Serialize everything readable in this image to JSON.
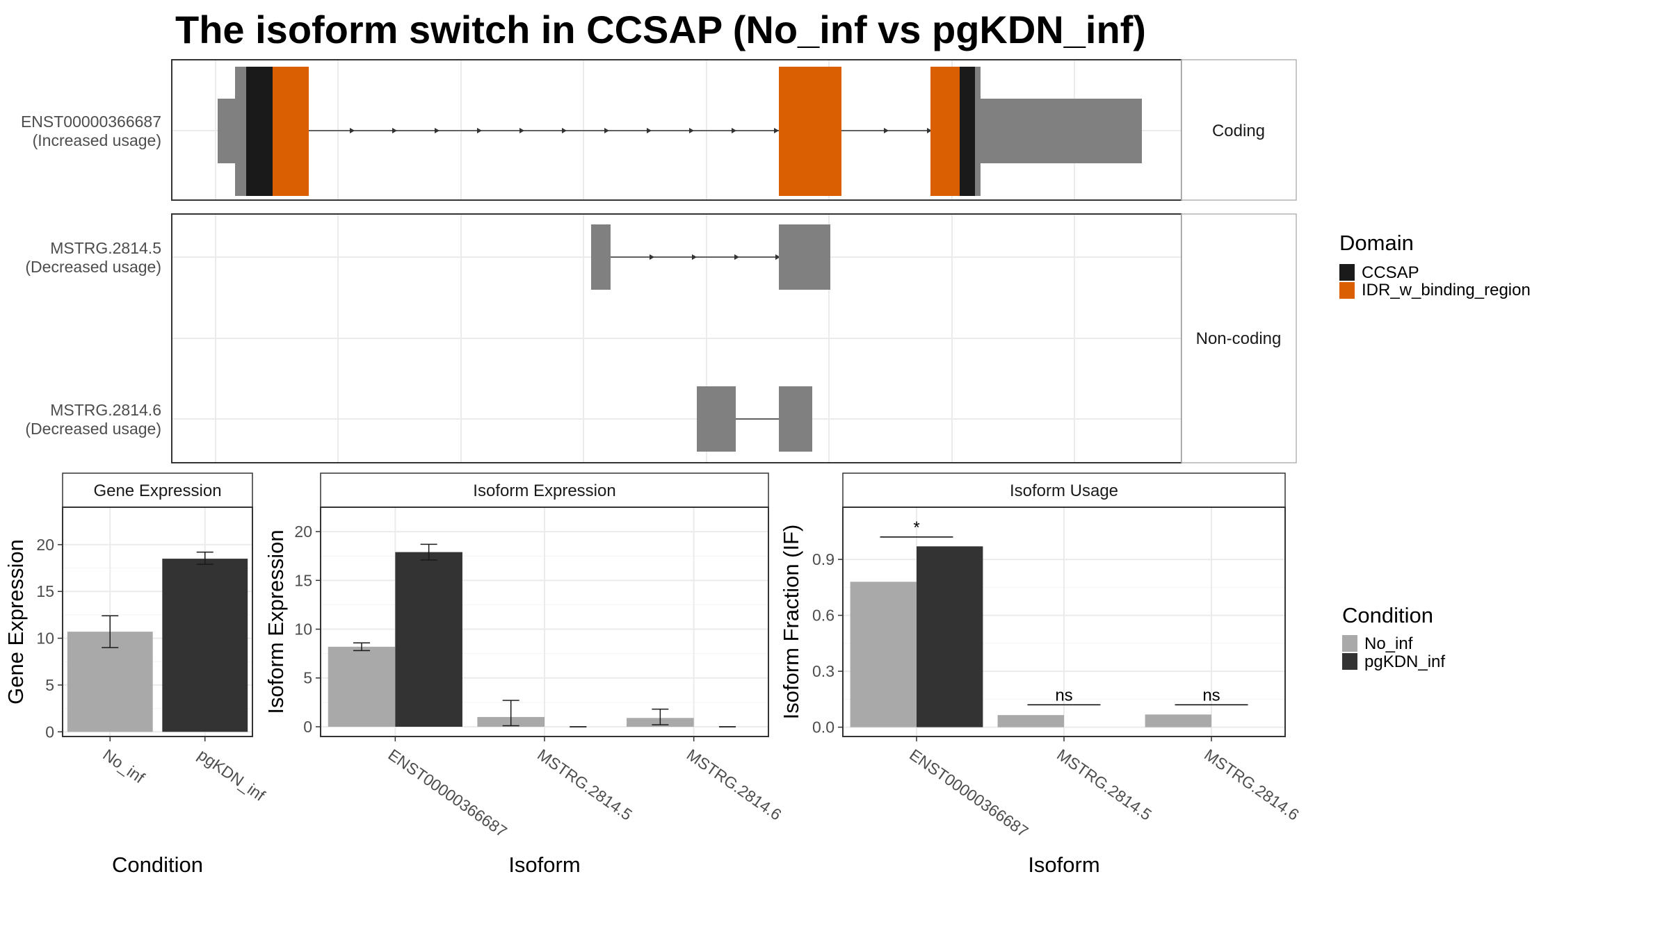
{
  "title": "The isoform switch in CCSAP (No_inf vs pgKDN_inf)",
  "colors": {
    "exon": "#808080",
    "CCSAP": "#1a1a1a",
    "IDR_w_binding_region": "#d95f02",
    "No_inf": "#a9a9a9",
    "pgKDN_inf": "#333333",
    "grid": "#ebebeb",
    "panel_border": "#333333"
  },
  "structure": {
    "groups": [
      {
        "label": "Coding",
        "isoforms": [
          {
            "name": "ENST00000366687",
            "usage": "(Increased usage)"
          }
        ]
      },
      {
        "label": "Non-coding",
        "isoforms": [
          {
            "name": "MSTRG.2814.5",
            "usage": "(Decreased usage)"
          },
          {
            "name": "MSTRG.2814.6",
            "usage": "(Decreased usage)"
          }
        ]
      }
    ]
  },
  "domain_legend": {
    "title": "Domain",
    "items": [
      {
        "label": "CCSAP",
        "color": "#1a1a1a"
      },
      {
        "label": "IDR_w_binding_region",
        "color": "#d95f02"
      }
    ]
  },
  "condition_legend": {
    "title": "Condition",
    "items": [
      {
        "label": "No_inf",
        "color": "#a9a9a9"
      },
      {
        "label": "pgKDN_inf",
        "color": "#333333"
      }
    ]
  },
  "chart_data": [
    {
      "type": "bar",
      "title": "Gene Expression",
      "xlabel": "Condition",
      "ylabel": "Gene Expression",
      "categories": [
        "No_inf",
        "pgKDN_inf"
      ],
      "values": [
        10.7,
        18.5
      ],
      "error_low": [
        9.0,
        17.9
      ],
      "error_high": [
        12.4,
        19.2
      ],
      "yticks": [
        0,
        5,
        10,
        15,
        20
      ],
      "ylim": [
        -0.5,
        24
      ]
    },
    {
      "type": "bar",
      "title": "Isoform Expression",
      "xlabel": "Isoform",
      "ylabel": "Isoform Expression",
      "categories": [
        "ENST00000366687",
        "MSTRG.2814.5",
        "MSTRG.2814.6"
      ],
      "series": [
        {
          "name": "No_inf",
          "values": [
            8.2,
            1.0,
            0.9
          ],
          "error_low": [
            7.8,
            0.1,
            0.2
          ],
          "error_high": [
            8.6,
            2.7,
            1.8
          ]
        },
        {
          "name": "pgKDN_inf",
          "values": [
            17.9,
            0.0,
            0.0
          ],
          "error_low": [
            17.1,
            0.0,
            0.0
          ],
          "error_high": [
            18.7,
            0.0,
            0.0
          ]
        }
      ],
      "yticks": [
        0,
        5,
        10,
        15,
        20
      ],
      "ylim": [
        -1,
        22.5
      ]
    },
    {
      "type": "bar",
      "title": "Isoform Usage",
      "xlabel": "Isoform",
      "ylabel": "Isoform Fraction (IF)",
      "categories": [
        "ENST00000366687",
        "MSTRG.2814.5",
        "MSTRG.2814.6"
      ],
      "series": [
        {
          "name": "No_inf",
          "values": [
            0.78,
            0.065,
            0.068
          ]
        },
        {
          "name": "pgKDN_inf",
          "values": [
            0.97,
            0.0,
            0.0
          ]
        }
      ],
      "significance": [
        "*",
        "ns",
        "ns"
      ],
      "sig_y": [
        1.02,
        0.12,
        0.12
      ],
      "yticks": [
        0.0,
        0.3,
        0.6,
        0.9
      ],
      "yticklabels": [
        "0.0",
        "0.3",
        "0.6",
        "0.9"
      ],
      "ylim": [
        -0.05,
        1.18
      ]
    }
  ]
}
